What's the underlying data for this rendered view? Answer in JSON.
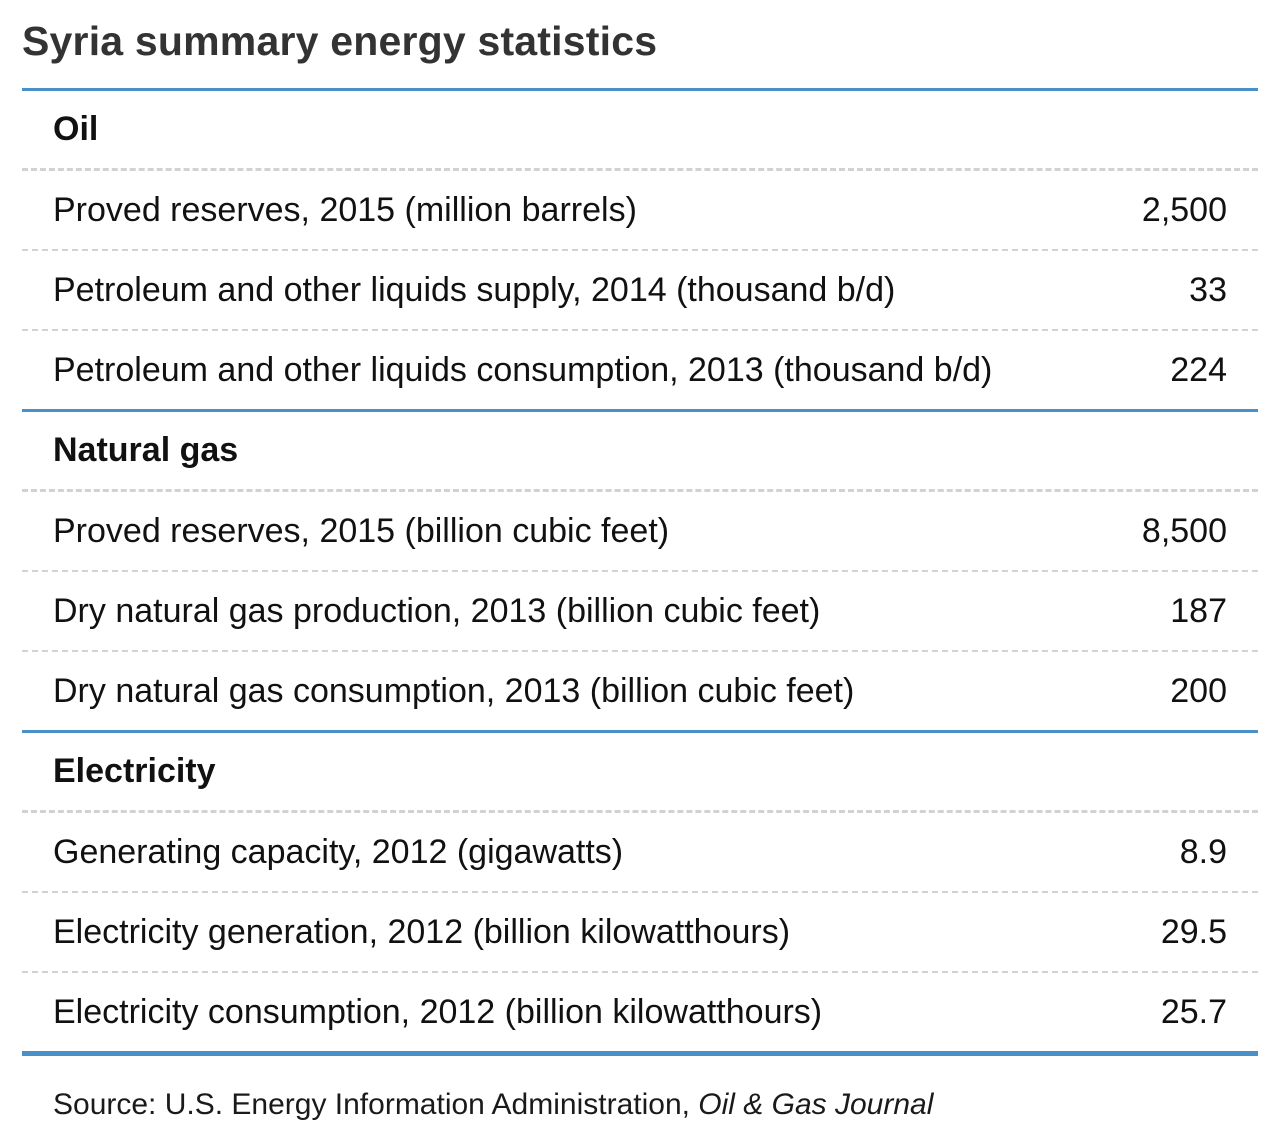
{
  "title": "Syria summary energy statistics",
  "sections": [
    {
      "heading": "Oil",
      "rows": [
        {
          "label": "Proved reserves, 2015 (million barrels)",
          "value": "2,500"
        },
        {
          "label": "Petroleum and other liquids supply, 2014 (thousand b/d)",
          "value": "33"
        },
        {
          "label": "Petroleum and other liquids consumption, 2013 (thousand b/d)",
          "value": "224"
        }
      ]
    },
    {
      "heading": "Natural gas",
      "rows": [
        {
          "label": "Proved reserves, 2015 (billion cubic feet)",
          "value": "8,500"
        },
        {
          "label": "Dry natural gas production, 2013 (billion cubic feet)",
          "value": "187"
        },
        {
          "label": "Dry natural gas consumption, 2013 (billion cubic feet)",
          "value": "200"
        }
      ]
    },
    {
      "heading": "Electricity",
      "rows": [
        {
          "label": "Generating capacity, 2012 (gigawatts)",
          "value": "8.9"
        },
        {
          "label": "Electricity generation, 2012 (billion kilowatthours)",
          "value": "29.5"
        },
        {
          "label": "Electricity consumption, 2012 (billion kilowatthours)",
          "value": "25.7"
        }
      ]
    }
  ],
  "source": {
    "prefix": "Source: U.S. Energy Information Administration, ",
    "italic": "Oil & Gas Journal"
  },
  "colors": {
    "rule_blue": "#4a90c8",
    "dash_gray": "#d2d2d2",
    "title_gray": "#333333"
  }
}
